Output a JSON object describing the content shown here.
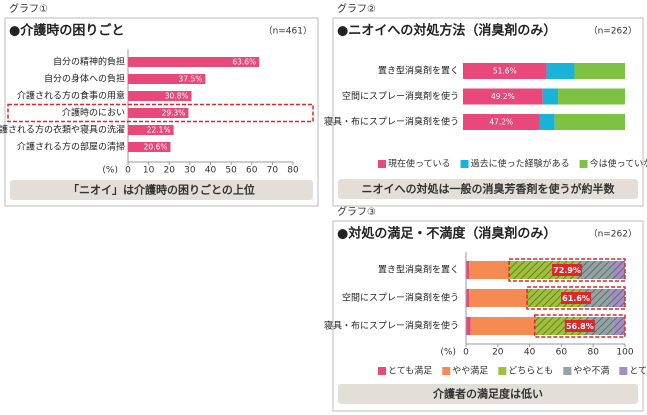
{
  "chart_data": [
    {
      "type": "bar",
      "label": "グラフ①",
      "title": "●介護時の困りごと",
      "note": "（n=461）",
      "categories": [
        "自分の精神的負担",
        "自分の身体への負担",
        "介護される方の食事の用意",
        "介護時のにおい",
        "介護される方の衣類や寝具の洗濯",
        "介護される方の部屋の清掃"
      ],
      "values": [
        63.6,
        37.5,
        30.8,
        29.3,
        22.1,
        20.6
      ],
      "value_labels": [
        "63.6%",
        "37.5%",
        "30.8%",
        "29.3%",
        "22.1%",
        "20.6%"
      ],
      "color": "#e8497a",
      "xlim": [
        0,
        80
      ],
      "xticks": [
        0,
        10,
        20,
        30,
        40,
        50,
        60,
        70,
        80
      ],
      "x_unit_label": "(%)",
      "highlight": 3,
      "footer": "「ニオイ」は介護時の困りごとの上位"
    },
    {
      "type": "stacked_bar",
      "label": "グラフ②",
      "title": "●ニオイへの対処方法（消臭剤のみ）",
      "note": "（n=262）",
      "categories": [
        "置き型消臭剤を置く",
        "空間にスプレー消臭剤を使う",
        "寝具・布にスプレー消臭剤を使う"
      ],
      "series": [
        {
          "name": "現在使っている",
          "color": "#e8497a",
          "values": [
            51.6,
            49.2,
            47.2
          ],
          "value_labels": [
            "51.6%",
            "49.2%",
            "47.2%"
          ]
        },
        {
          "name": "過去に使った経験がある",
          "color": "#19b2d8",
          "values": [
            17.2,
            9.5,
            9.4
          ]
        },
        {
          "name": "今は使っていない",
          "color": "#7dc242",
          "values": [
            31.2,
            41.3,
            43.4
          ]
        }
      ],
      "footer": "ニオイへの対処は一般の消臭芳香剤を使うが約半数"
    },
    {
      "type": "stacked_bar",
      "label": "グラフ③",
      "title": "●対処の満足・不満度（消臭剤のみ）",
      "note": "（n=262）",
      "categories": [
        "置き型消臭剤を置く",
        "空間にスプレー消臭剤を使う",
        "寝具・布にスプレー消臭剤を使う"
      ],
      "series": [
        {
          "name": "とても満足",
          "color": "#e8497a",
          "values": [
            2,
            2,
            3
          ]
        },
        {
          "name": "やや満足",
          "color": "#f58a52",
          "values": [
            25.1,
            36.4,
            40.2
          ]
        },
        {
          "name": "どちらとも",
          "color": "#9dc13c",
          "values": [
            43,
            35.2,
            31.8
          ]
        },
        {
          "name": "やや不満",
          "color": "#8fa3a8",
          "values": [
            22,
            18.2,
            18
          ]
        },
        {
          "name": "とても不満",
          "color": "#a08fc4",
          "values": [
            7.9,
            8.2,
            7
          ]
        }
      ],
      "xlim": [
        0,
        100
      ],
      "xticks": [
        0,
        20,
        40,
        60,
        80,
        100
      ],
      "x_unit_label": "(%)",
      "highlight": {
        "values": [
          72.9,
          61.6,
          56.8
        ],
        "value_labels": [
          "72.9%",
          "61.6%",
          "56.8%"
        ]
      },
      "footer": "介護者の満足度は低い"
    }
  ]
}
